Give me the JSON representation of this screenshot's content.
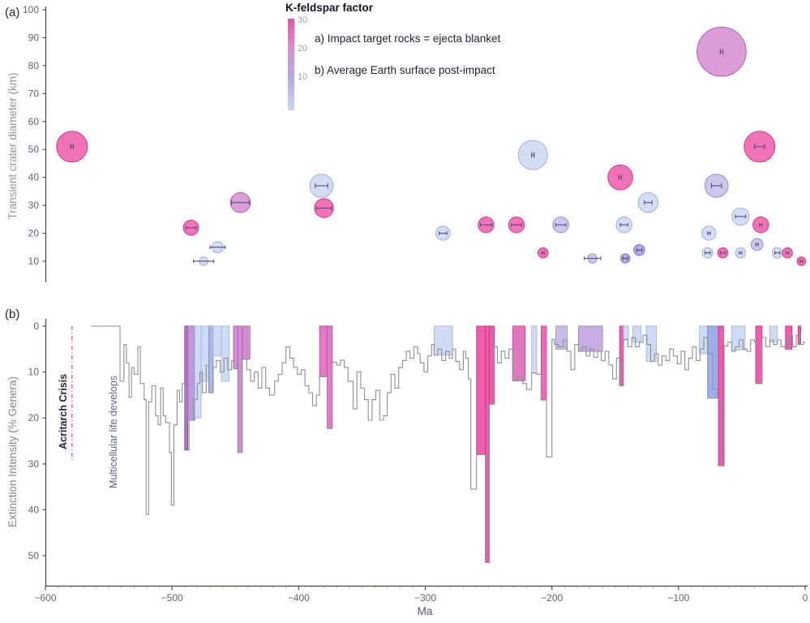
{
  "figure": {
    "panel_a_label": "(a)",
    "panel_b_label": "(b)"
  },
  "chart_data": [
    {
      "type": "bubble",
      "panel": "a",
      "ylabel": "Transient crater diameter (km)",
      "xlim": [
        -600,
        0
      ],
      "ylim": [
        5,
        102
      ],
      "yticks": [
        10,
        20,
        30,
        40,
        50,
        60,
        70,
        80,
        90,
        100
      ],
      "grid": false,
      "legend": {
        "title": "K-feldspar factor",
        "colorbar_ticks": [
          "30",
          "20",
          "10"
        ],
        "colorbar_top_color": "#ec4fa4",
        "colorbar_bottom_color": "#cbd8f3",
        "items": [
          "a) Impact target rocks = ejecta blanket",
          "b) Average Earth surface post-impact"
        ]
      },
      "palette": {
        "p": {
          "fill": "#ee58a8",
          "stroke": "#cf3c8e"
        },
        "o": {
          "fill": "#d489cf",
          "stroke": "#b160b1"
        },
        "v": {
          "fill": "#a89ade",
          "stroke": "#8274c2"
        },
        "l": {
          "fill": "#c6bbe9",
          "stroke": "#9c8cd0"
        },
        "b": {
          "fill": "#cbd8f3",
          "stroke": "#9cb0d8"
        }
      },
      "errorbar_color": "#554a78",
      "points": [
        {
          "ma": -579,
          "km": 51,
          "err": 1,
          "c": "p"
        },
        {
          "ma": -485,
          "km": 22,
          "err": 4,
          "c": "p"
        },
        {
          "ma": -475,
          "km": 10,
          "err": 8,
          "c": "b"
        },
        {
          "ma": -464,
          "km": 15,
          "err": 6,
          "c": "b"
        },
        {
          "ma": -446,
          "km": 31,
          "err": 7,
          "c": "o"
        },
        {
          "ma": -382,
          "km": 37,
          "err": 5,
          "c": "b"
        },
        {
          "ma": -380,
          "km": 29,
          "err": 6,
          "c": "p"
        },
        {
          "ma": -286,
          "km": 20,
          "err": 3,
          "c": "b"
        },
        {
          "ma": -252,
          "km": 23,
          "err": 4.5,
          "c": "p"
        },
        {
          "ma": -228,
          "km": 23,
          "err": 4,
          "c": "p"
        },
        {
          "ma": -215,
          "km": 48,
          "err": 1,
          "c": "b"
        },
        {
          "ma": -207,
          "km": 13,
          "err": 1,
          "c": "p"
        },
        {
          "ma": -193,
          "km": 23,
          "err": 4,
          "c": "l"
        },
        {
          "ma": -168,
          "km": 11,
          "err": 6.5,
          "c": "l"
        },
        {
          "ma": -146,
          "km": 40,
          "err": 1,
          "c": "p"
        },
        {
          "ma": -143,
          "km": 23,
          "err": 3,
          "c": "b"
        },
        {
          "ma": -142,
          "km": 11,
          "err": 2,
          "c": "v"
        },
        {
          "ma": -131,
          "km": 14,
          "err": 2,
          "c": "v"
        },
        {
          "ma": -124,
          "km": 31,
          "err": 3,
          "c": "b"
        },
        {
          "ma": -77,
          "km": 13,
          "err": 2,
          "c": "b"
        },
        {
          "ma": -76,
          "km": 20,
          "err": 1,
          "c": "b"
        },
        {
          "ma": -70,
          "km": 37,
          "err": 4,
          "c": "l"
        },
        {
          "ma": -66,
          "km": 85,
          "err": 1,
          "c": "o"
        },
        {
          "ma": -65,
          "km": 13,
          "err": 2,
          "c": "p"
        },
        {
          "ma": -51,
          "km": 26,
          "err": 4,
          "c": "b"
        },
        {
          "ma": -51,
          "km": 13,
          "err": 1,
          "c": "b"
        },
        {
          "ma": -38,
          "km": 16,
          "err": 1,
          "c": "l"
        },
        {
          "ma": -36,
          "km": 51,
          "err": 4,
          "c": "p"
        },
        {
          "ma": -35,
          "km": 23,
          "err": 1,
          "c": "p"
        },
        {
          "ma": -22,
          "km": 13,
          "err": 2,
          "c": "b"
        },
        {
          "ma": -14,
          "km": 13,
          "err": 1,
          "c": "p"
        },
        {
          "ma": -3,
          "km": 10,
          "err": 1,
          "c": "p"
        }
      ]
    },
    {
      "type": "step-area",
      "panel": "b",
      "ylabel": "Extinction Intensity (% Genera)",
      "xlabel": "Ma",
      "xlim": [
        -600,
        0
      ],
      "ylim_reversed": [
        0,
        56
      ],
      "yticks": [
        0,
        10,
        20,
        30,
        40,
        50
      ],
      "xticks": [
        -600,
        -500,
        -400,
        -300,
        -200,
        -100,
        0
      ],
      "xtick_labels": [
        "−600",
        "−500",
        "−400",
        "−300",
        "−200",
        "−100",
        "0"
      ],
      "line_color": "#8b9097",
      "axis_color": "#3f4652",
      "tick_label_color": "#5d6674",
      "annotations": [
        {
          "text": "Acritarch Crisis",
          "ma": -579,
          "style": "dash-dot-line",
          "line_color": "#e85fae",
          "text_color": "#232c3c",
          "depth": 29.5
        },
        {
          "text": "Multicellular life develops",
          "ma": -546,
          "style": "text-only",
          "text_color": "#5e6a82"
        }
      ],
      "steps": [
        [
          -564,
          0
        ],
        [
          -541,
          12
        ],
        [
          -538,
          4
        ],
        [
          -536,
          8
        ],
        [
          -534,
          15.5
        ],
        [
          -532,
          9
        ],
        [
          -530,
          10.5
        ],
        [
          -527,
          4.5
        ],
        [
          -525,
          12.5
        ],
        [
          -522,
          16
        ],
        [
          -520.5,
          41
        ],
        [
          -518.5,
          16.5
        ],
        [
          -516,
          13
        ],
        [
          -513,
          19.5
        ],
        [
          -511,
          21.5
        ],
        [
          -509,
          13.5
        ],
        [
          -507,
          19.5
        ],
        [
          -505,
          21
        ],
        [
          -502,
          27.5
        ],
        [
          -500.5,
          39
        ],
        [
          -498.5,
          21.5
        ],
        [
          -496,
          14
        ],
        [
          -494,
          16.5
        ],
        [
          -492,
          12.5
        ],
        [
          -490,
          20.5
        ],
        [
          -488.5,
          27
        ],
        [
          -486.5,
          20.5
        ],
        [
          -483,
          16
        ],
        [
          -480,
          12.5
        ],
        [
          -478,
          10
        ],
        [
          -476,
          14.5
        ],
        [
          -473,
          8.5
        ],
        [
          -471,
          14.5
        ],
        [
          -467.5,
          9
        ],
        [
          -465,
          7.5
        ],
        [
          -462,
          10
        ],
        [
          -459,
          7
        ],
        [
          -456,
          9.5
        ],
        [
          -453,
          7.5
        ],
        [
          -451.5,
          9.3
        ],
        [
          -448,
          27.5
        ],
        [
          -444.5,
          7.2
        ],
        [
          -441,
          9.5
        ],
        [
          -438,
          12
        ],
        [
          -435,
          10
        ],
        [
          -432,
          13.5
        ],
        [
          -429,
          9
        ],
        [
          -426,
          13.5
        ],
        [
          -423,
          15
        ],
        [
          -419,
          12
        ],
        [
          -416,
          10.5
        ],
        [
          -413,
          8
        ],
        [
          -410,
          4.5
        ],
        [
          -407,
          7
        ],
        [
          -404,
          9
        ],
        [
          -401,
          10.5
        ],
        [
          -398,
          9.5
        ],
        [
          -395,
          13
        ],
        [
          -392,
          14.5
        ],
        [
          -389,
          17.3
        ],
        [
          -386,
          15
        ],
        [
          -383.5,
          11
        ],
        [
          -377.5,
          22.3
        ],
        [
          -373.5,
          7.9
        ],
        [
          -370,
          8.5
        ],
        [
          -367,
          7.4
        ],
        [
          -364,
          9
        ],
        [
          -361,
          12
        ],
        [
          -357,
          18
        ],
        [
          -354,
          10
        ],
        [
          -351,
          13.5
        ],
        [
          -348,
          16
        ],
        [
          -345,
          20.5
        ],
        [
          -342,
          16
        ],
        [
          -339,
          14
        ],
        [
          -336,
          20.5
        ],
        [
          -333,
          19.5
        ],
        [
          -330,
          14.5
        ],
        [
          -327,
          10.5
        ],
        [
          -324,
          13.5
        ],
        [
          -321,
          9
        ],
        [
          -318,
          7.5
        ],
        [
          -315,
          5.5
        ],
        [
          -312,
          7
        ],
        [
          -309,
          4.5
        ],
        [
          -306,
          6
        ],
        [
          -304,
          8
        ],
        [
          -301,
          10
        ],
        [
          -298,
          6.5
        ],
        [
          -295,
          4
        ],
        [
          -293,
          6.3
        ],
        [
          -290,
          5
        ],
        [
          -287,
          7.5
        ],
        [
          -284,
          5.5
        ],
        [
          -281,
          7
        ],
        [
          -278.5,
          5
        ],
        [
          -276,
          7.7
        ],
        [
          -273,
          9.5
        ],
        [
          -270,
          5.5
        ],
        [
          -268,
          7
        ],
        [
          -266,
          11.5
        ],
        [
          -264,
          35.5
        ],
        [
          -259.5,
          28
        ],
        [
          -252.5,
          51.5
        ],
        [
          -249.5,
          17
        ],
        [
          -245.5,
          4.5
        ],
        [
          -243,
          8
        ],
        [
          -240,
          5.5
        ],
        [
          -237,
          7
        ],
        [
          -234,
          5
        ],
        [
          -231,
          11.9
        ],
        [
          -227,
          11
        ],
        [
          -223,
          12.5
        ],
        [
          -220,
          13.8
        ],
        [
          -216,
          10.2
        ],
        [
          -212,
          10.5
        ],
        [
          -208.5,
          16.1
        ],
        [
          -204.3,
          28.5
        ],
        [
          -200,
          2.9
        ],
        [
          -198,
          4
        ],
        [
          -195,
          4.5
        ],
        [
          -191,
          3
        ],
        [
          -188,
          5.5
        ],
        [
          -185,
          9.5
        ],
        [
          -182,
          4
        ],
        [
          -179,
          5.5
        ],
        [
          -176,
          4.5
        ],
        [
          -173,
          6.5
        ],
        [
          -170,
          5
        ],
        [
          -167,
          6.8
        ],
        [
          -164,
          5.5
        ],
        [
          -161,
          7.5
        ],
        [
          -158,
          5.5
        ],
        [
          -155,
          8.5
        ],
        [
          -152,
          11.5
        ],
        [
          -149,
          7
        ],
        [
          -146.5,
          13
        ],
        [
          -143.5,
          2.9
        ],
        [
          -140,
          4.5
        ],
        [
          -137,
          2.5
        ],
        [
          -134,
          4.5
        ],
        [
          -131,
          3.5
        ],
        [
          -128,
          2
        ],
        [
          -125,
          4
        ],
        [
          -122,
          7.7
        ],
        [
          -119,
          6
        ],
        [
          -116,
          8.5
        ],
        [
          -113,
          6.5
        ],
        [
          -110,
          7.5
        ],
        [
          -107,
          5
        ],
        [
          -104,
          6.5
        ],
        [
          -101,
          8.2
        ],
        [
          -98,
          5.5
        ],
        [
          -95,
          9.5
        ],
        [
          -92,
          7
        ],
        [
          -89,
          4.5
        ],
        [
          -86,
          7.5
        ],
        [
          -83,
          5
        ],
        [
          -80,
          2.5
        ],
        [
          -77,
          6
        ],
        [
          -73,
          13.8
        ],
        [
          -69,
          15.7
        ],
        [
          -66.5,
          30.4
        ],
        [
          -64,
          4.3
        ],
        [
          -61,
          3.5
        ],
        [
          -58,
          5.5
        ],
        [
          -55,
          4.5
        ],
        [
          -52,
          3
        ],
        [
          -49,
          5
        ],
        [
          -46,
          5.5
        ],
        [
          -43,
          3
        ],
        [
          -40,
          3.5
        ],
        [
          -38,
          12.5
        ],
        [
          -34,
          2.5
        ],
        [
          -31,
          4.5
        ],
        [
          -28,
          3
        ],
        [
          -25,
          4
        ],
        [
          -22,
          3
        ],
        [
          -19,
          4.5
        ],
        [
          -16,
          4.3
        ],
        [
          -13,
          2
        ],
        [
          -10,
          4.5
        ],
        [
          -7,
          2
        ],
        [
          -4,
          4
        ],
        [
          -1.5,
          3.5
        ]
      ],
      "bands": [
        [
          -490,
          -487.5,
          27,
          "#b264c6"
        ],
        [
          -487.5,
          -482,
          20.5,
          "#bb90d8"
        ],
        [
          -482,
          -477,
          20,
          "#cbd8f3"
        ],
        [
          -477,
          -471,
          12,
          "#cbd8f3"
        ],
        [
          -471,
          -467.5,
          14.5,
          "#a2b2e8"
        ],
        [
          -467.5,
          -461,
          6.5,
          "#cbd8f3"
        ],
        [
          -461,
          -455,
          12,
          "#cbd8f3"
        ],
        [
          -451.5,
          -448,
          9.3,
          "#cd86cd"
        ],
        [
          -448,
          -444.5,
          27.5,
          "#cd86cd"
        ],
        [
          -444.5,
          -438.5,
          7.2,
          "#cd86cd"
        ],
        [
          -383.5,
          -377.5,
          11,
          "#e06fc2"
        ],
        [
          -377.5,
          -373.5,
          22.3,
          "#e06fc2"
        ],
        [
          -293,
          -278.5,
          6.3,
          "#cbd8f3"
        ],
        [
          -259.5,
          -252.5,
          28,
          "#ec4fa4"
        ],
        [
          -252.5,
          -249.5,
          51.5,
          "#ec4fa4"
        ],
        [
          -249.5,
          -245.5,
          17,
          "#ec4fa4"
        ],
        [
          -231,
          -221,
          11.9,
          "#de6cba"
        ],
        [
          -216,
          -212,
          10.2,
          "#cbd8f3"
        ],
        [
          -208.5,
          -204.3,
          16.1,
          "#e85fae"
        ],
        [
          -197,
          -188,
          5,
          "#c4b5e8"
        ],
        [
          -179,
          -160,
          5.5,
          "#c3a6e2"
        ],
        [
          -146.5,
          -143.5,
          13,
          "#ec4fa4"
        ],
        [
          -143.5,
          -139.5,
          3,
          "#cbd8f3"
        ],
        [
          -136,
          -129.5,
          3.5,
          "#cbd8f3"
        ],
        [
          -125.5,
          -117.5,
          7.7,
          "#cbd8f3"
        ],
        [
          -83.5,
          -77,
          6,
          "#cbd8f3"
        ],
        [
          -77,
          -68.5,
          15.7,
          "#97a6e6"
        ],
        [
          -68.5,
          -64.5,
          30.4,
          "#ec4fa4"
        ],
        [
          -58,
          -47.5,
          5.2,
          "#cbd8f3"
        ],
        [
          -39,
          -34,
          12.5,
          "#ec4fa4"
        ],
        [
          -28,
          -22,
          3.5,
          "#cbd8f3"
        ],
        [
          -15.5,
          -10.5,
          5,
          "#ec4fa4"
        ],
        [
          -5.5,
          -3.5,
          4,
          "#ec4fa4"
        ]
      ],
      "band_strokes": {
        "#b264c6": "#9247ab",
        "#bb90d8": "#9c6fc0",
        "#cbd8f3": "#a5b8dc",
        "#a2b2e8": "#8092cf",
        "#cd86cd": "#ae61af",
        "#e06fc2": "#c14da5",
        "#ec4fa4": "#c93688",
        "#de6cba": "#bf4d9e",
        "#e85fae": "#c84292",
        "#97a6e6": "#7585cc",
        "#c4b5e8": "#a391cc",
        "#c3a6e2": "#a283c6"
      }
    }
  ]
}
